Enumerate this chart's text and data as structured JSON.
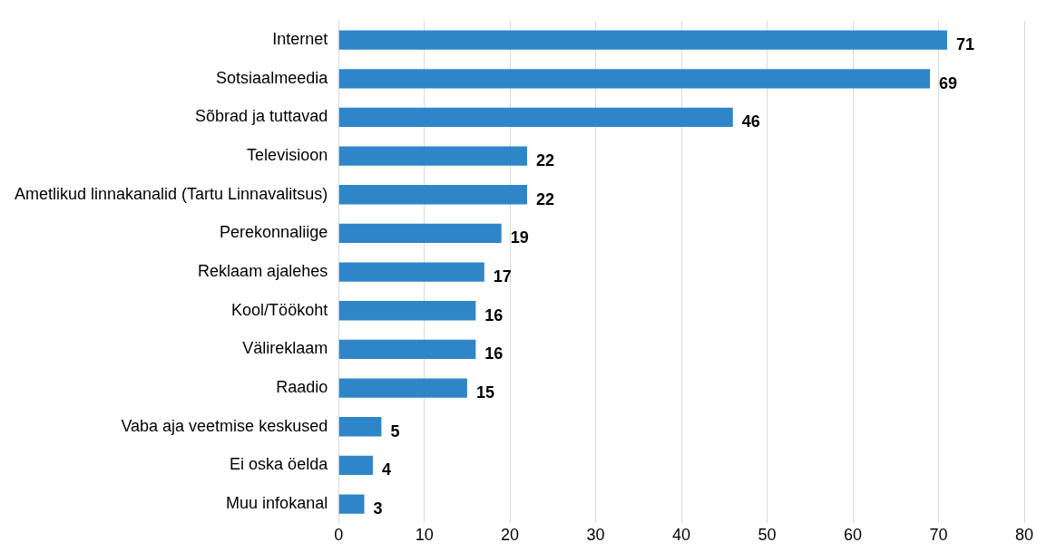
{
  "chart_data": {
    "type": "bar",
    "orientation": "horizontal",
    "categories": [
      "Internet",
      "Sotsiaalmeedia",
      "Sõbrad ja tuttavad",
      "Televisioon",
      "Ametlikud linnakanalid (Tartu Linnavalitsus)",
      "Perekonnaliige",
      "Reklaam ajalehes",
      "Kool/Töökoht",
      "Välireklaam",
      "Raadio",
      "Vaba aja veetmise keskused",
      "Ei oska öelda",
      "Muu infokanal"
    ],
    "values": [
      71,
      69,
      46,
      22,
      22,
      19,
      17,
      16,
      16,
      15,
      5,
      4,
      3
    ],
    "color": "#2e86c8",
    "xlim": [
      0,
      80
    ],
    "xticks": [
      0,
      10,
      20,
      30,
      40,
      50,
      60,
      70,
      80
    ],
    "grid": "x",
    "data_labels": true,
    "legend": false
  }
}
